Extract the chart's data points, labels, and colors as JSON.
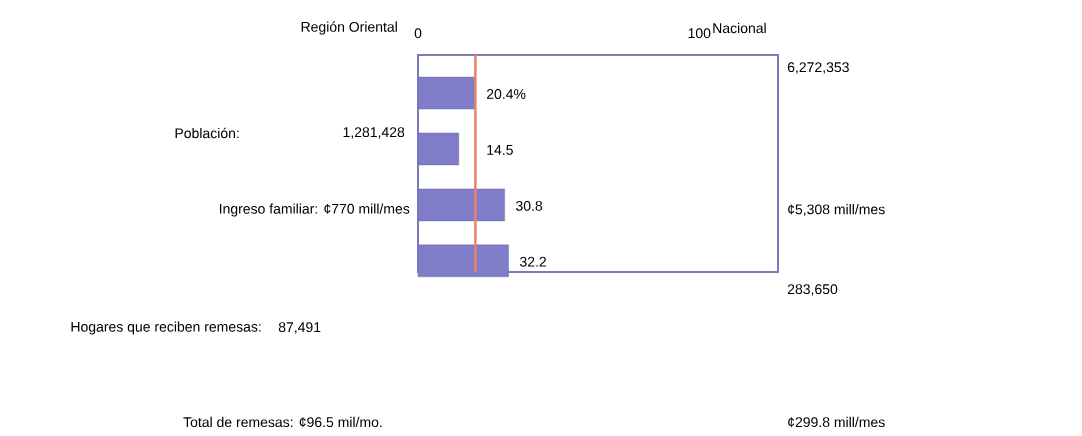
{
  "chart_data": {
    "type": "bar",
    "orientation": "horizontal",
    "categories": [
      null,
      null,
      null,
      null
    ],
    "values": [
      20.4,
      14.5,
      30.8,
      32.2
    ],
    "value_labels": [
      "20.4%",
      "14.5",
      "30.8",
      "32.2"
    ],
    "color": "#7f7cc8",
    "xlim": [
      0,
      128
    ],
    "xticks": [
      0,
      100
    ],
    "ref_lines": [
      {
        "axis": "x",
        "value": 20.4,
        "color": "#e8826a"
      }
    ],
    "annotations": [
      "Región Oriental",
      "Nacional",
      "6,272,353",
      "Población:",
      "1,281,428",
      "Ingreso familiar: ¢770 mill/mes",
      "¢5,308 mill/mes",
      "283,650",
      "Hogares que reciben remesas:",
      "87,491",
      "Total de remesas: ¢96.5 mil/mo.",
      "¢299.8 mill/mes"
    ],
    "grid": false
  }
}
